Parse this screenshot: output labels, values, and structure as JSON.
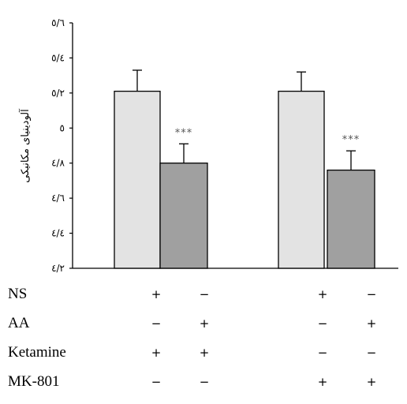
{
  "chart_data": {
    "type": "bar",
    "ylabel": "آلودینیای مکانیکی",
    "ylim": [
      4.2,
      5.6
    ],
    "yticks": [
      "٥/٦",
      "٥/٤",
      "٥/٢",
      "٥",
      "٤/٨",
      "٤/٦",
      "٤/٤",
      "٤/٢"
    ],
    "ytick_values": [
      5.6,
      5.4,
      5.2,
      5.0,
      4.8,
      4.6,
      4.4,
      4.2
    ],
    "groups": [
      {
        "bars": [
          {
            "value": 5.21,
            "error": 0.12,
            "color": "#e3e3e3",
            "annotation": ""
          },
          {
            "value": 4.8,
            "error": 0.11,
            "color": "#a0a0a0",
            "annotation": "***"
          }
        ]
      },
      {
        "bars": [
          {
            "value": 5.21,
            "error": 0.11,
            "color": "#e3e3e3",
            "annotation": ""
          },
          {
            "value": 4.76,
            "error": 0.11,
            "color": "#a0a0a0",
            "annotation": "***"
          }
        ]
      }
    ],
    "conditions": [
      {
        "name": "NS",
        "marks": [
          "+",
          "−",
          "+",
          "−"
        ]
      },
      {
        "name": "AA",
        "marks": [
          "−",
          "+",
          "−",
          "+"
        ]
      },
      {
        "name": "Ketamine",
        "marks": [
          "+",
          "+",
          "−",
          "−"
        ]
      },
      {
        "name": "MK-801",
        "marks": [
          "−",
          "−",
          "+",
          "+"
        ]
      }
    ]
  }
}
